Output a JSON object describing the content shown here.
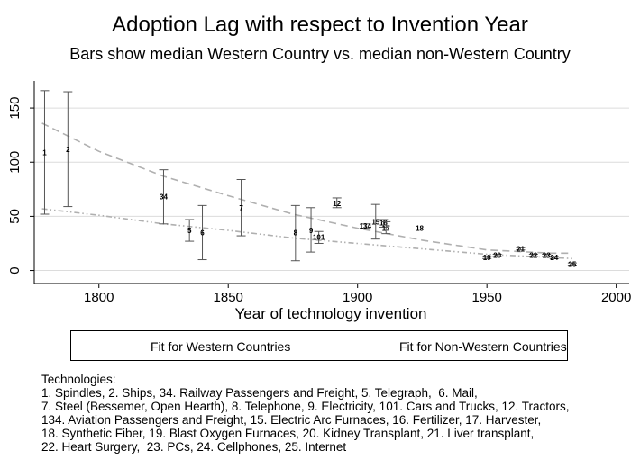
{
  "title": "Adoption Lag with respect to Invention Year",
  "subtitle": "Bars show median Western Country vs. median non-Western Country",
  "legend": {
    "western": "Fit for Western Countries",
    "nonwestern": "Fit for Non-Western Countries"
  },
  "footnote": [
    "Technologies:",
    "1. Spindles, 2. Ships, 34. Railway Passengers and Freight, 5. Telegraph,  6. Mail,",
    "7. Steel (Bessemer, Open Hearth), 8. Telephone, 9. Electricity, 101. Cars and Trucks, 12. Tractors,",
    "134. Aviation Passengers and Freight, 15. Electric Arc Furnaces, 16. Fertilizer, 17. Harvester,",
    "18. Synthetic Fiber, 19. Blast Oxygen Furnaces, 20. Kidney Transplant, 21. Liver transplant,",
    "22. Heart Surgery,  23. PCs, 24. Cellphones, 25. Internet"
  ],
  "chart_data": {
    "type": "scatter",
    "title": "Adoption Lag with respect to Invention Year",
    "subtitle": "Bars show median Western Country vs. median non-Western Country",
    "xlabel": "Year of technology invention",
    "ylabel": "",
    "xlim": [
      1775,
      2005
    ],
    "ylim": [
      -12,
      175
    ],
    "xticks": [
      1800,
      1850,
      1900,
      1950,
      2000
    ],
    "yticks": [
      0,
      50,
      100,
      150
    ],
    "grid": "horizontal",
    "legend_position": "bottom",
    "colors": {
      "fit_line": "#b0b0b0",
      "error_bar": "#555555",
      "grid": "#dcdcdc",
      "axis": "#000000"
    },
    "points": [
      {
        "label": "1",
        "x": 1779,
        "y": 109,
        "lo": 52,
        "hi": 166
      },
      {
        "label": "2",
        "x": 1788,
        "y": 112,
        "lo": 59,
        "hi": 165
      },
      {
        "label": "34",
        "x": 1825,
        "y": 68,
        "lo": 43,
        "hi": 93
      },
      {
        "label": "5",
        "x": 1835,
        "y": 37,
        "lo": 27,
        "hi": 47
      },
      {
        "label": "6",
        "x": 1840,
        "y": 35,
        "lo": 10,
        "hi": 60
      },
      {
        "label": "7",
        "x": 1855,
        "y": 58,
        "lo": 32,
        "hi": 84
      },
      {
        "label": "8",
        "x": 1876,
        "y": 35,
        "lo": 9,
        "hi": 60
      },
      {
        "label": "9",
        "x": 1882,
        "y": 37,
        "lo": 17,
        "hi": 58
      },
      {
        "label": "101",
        "x": 1885,
        "y": 31,
        "lo": 25,
        "hi": 36
      },
      {
        "label": "12",
        "x": 1892,
        "y": 62,
        "lo": 58,
        "hi": 67
      },
      {
        "label": "134",
        "x": 1903,
        "y": 41,
        "lo": 39,
        "hi": 43
      },
      {
        "label": "15",
        "x": 1907,
        "y": 45,
        "lo": 29,
        "hi": 61
      },
      {
        "label": "16",
        "x": 1910,
        "y": 44,
        "lo": 40,
        "hi": 47
      },
      {
        "label": "17",
        "x": 1911,
        "y": 39,
        "lo": 34,
        "hi": 45
      },
      {
        "label": "18",
        "x": 1924,
        "y": 39,
        "lo": 39,
        "hi": 39
      },
      {
        "label": "19",
        "x": 1950,
        "y": 12,
        "lo": 11,
        "hi": 13
      },
      {
        "label": "20",
        "x": 1954,
        "y": 14,
        "lo": 13,
        "hi": 15
      },
      {
        "label": "21",
        "x": 1963,
        "y": 20,
        "lo": 19,
        "hi": 21
      },
      {
        "label": "22",
        "x": 1968,
        "y": 14,
        "lo": 13,
        "hi": 15
      },
      {
        "label": "23",
        "x": 1973,
        "y": 14,
        "lo": 13,
        "hi": 15
      },
      {
        "label": "24",
        "x": 1976,
        "y": 12,
        "lo": 11,
        "hi": 13
      },
      {
        "label": "25",
        "x": 1983,
        "y": 6,
        "lo": 5,
        "hi": 7
      }
    ],
    "series": [
      {
        "name": "Fit for Western Countries",
        "style": "dash-dot",
        "x": [
          1778,
          1800,
          1825,
          1850,
          1875,
          1900,
          1925,
          1950,
          1975,
          1983
        ],
        "y": [
          57,
          51,
          43,
          37,
          30,
          25,
          20,
          15,
          12,
          11
        ]
      },
      {
        "name": "Fit for Non-Western Countries",
        "style": "dashed",
        "x": [
          1778,
          1800,
          1825,
          1850,
          1875,
          1900,
          1925,
          1950,
          1975,
          1983
        ],
        "y": [
          136,
          110,
          87,
          69,
          52,
          39,
          28,
          19,
          16,
          16
        ]
      }
    ]
  }
}
